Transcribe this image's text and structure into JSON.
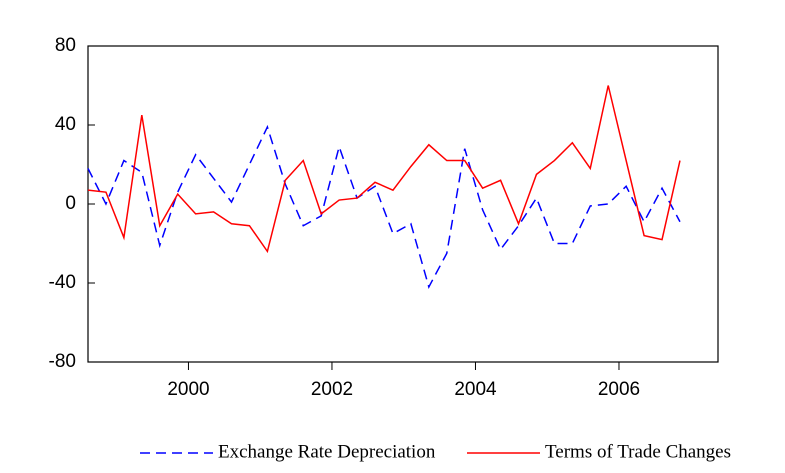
{
  "chart_data": {
    "type": "line",
    "x": [
      1999,
      1999.25,
      1999.5,
      1999.75,
      2000,
      2000.25,
      2000.5,
      2000.75,
      2001,
      2001.25,
      2001.5,
      2001.75,
      2002,
      2002.25,
      2002.5,
      2002.75,
      2003,
      2003.25,
      2003.5,
      2003.75,
      2004,
      2004.25,
      2004.5,
      2004.75,
      2005,
      2005.25,
      2005.5,
      2005.75,
      2006,
      2006.25,
      2006.5,
      2006.75,
      2007,
      2007.25
    ],
    "series": [
      {
        "name": "Exchange Rate Depreciation",
        "color": "#0000ff",
        "dash": true,
        "values": [
          18,
          0,
          22,
          16,
          -21,
          6,
          25,
          13,
          1,
          20,
          39,
          10,
          -11,
          -6,
          29,
          3,
          9,
          -15,
          -10,
          -42,
          -25,
          28,
          -3,
          -23,
          -11,
          3,
          -20,
          -20,
          -1,
          0,
          9,
          -9,
          8,
          -9
        ]
      },
      {
        "name": "Terms of Trade Changes",
        "color": "#ff0000",
        "dash": false,
        "values": [
          7,
          6,
          -17,
          45,
          -11,
          5,
          -5,
          -4,
          -10,
          -11,
          -24,
          12,
          22,
          -5,
          2,
          3,
          11,
          7,
          19,
          30,
          22,
          22,
          8,
          12,
          -10,
          15,
          22,
          31,
          18,
          60,
          22,
          -16,
          -18,
          22
        ]
      }
    ],
    "xlim": [
      1999,
      2007.78
    ],
    "xticks": [
      {
        "value": 2000.4,
        "label": "2000"
      },
      {
        "value": 2002.4,
        "label": "2002"
      },
      {
        "value": 2004.4,
        "label": "2004"
      },
      {
        "value": 2006.4,
        "label": "2006"
      }
    ],
    "ylim": [
      -80,
      80
    ],
    "yticks": [
      -80,
      -40,
      0,
      40,
      80
    ],
    "legend": "bottom"
  }
}
